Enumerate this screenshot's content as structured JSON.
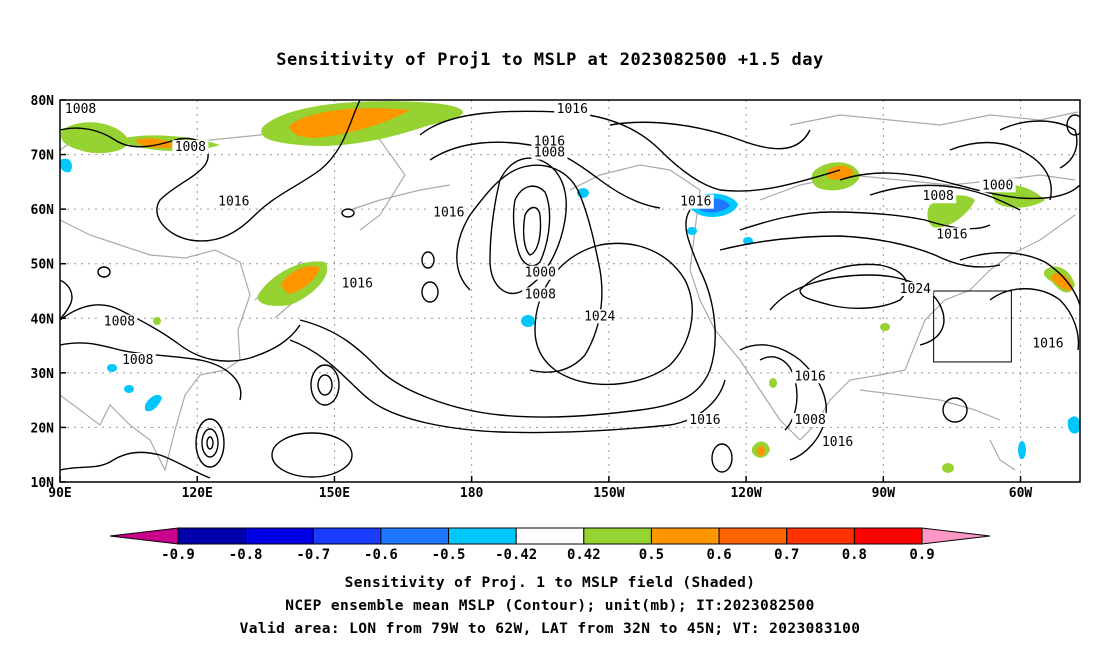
{
  "title": "Sensitivity of Proj1 to MSLP at 2023082500 +1.5 day",
  "x_ticks": [
    {
      "label": "90E",
      "lon": 90
    },
    {
      "label": "120E",
      "lon": 120
    },
    {
      "label": "150E",
      "lon": 150
    },
    {
      "label": "180",
      "lon": 180
    },
    {
      "label": "150W",
      "lon": 210
    },
    {
      "label": "120W",
      "lon": 240
    },
    {
      "label": "90W",
      "lon": 270
    },
    {
      "label": "60W",
      "lon": 300
    }
  ],
  "y_ticks": [
    {
      "label": "80N",
      "lat": 80
    },
    {
      "label": "70N",
      "lat": 70
    },
    {
      "label": "60N",
      "lat": 60
    },
    {
      "label": "50N",
      "lat": 50
    },
    {
      "label": "40N",
      "lat": 40
    },
    {
      "label": "30N",
      "lat": 30
    },
    {
      "label": "20N",
      "lat": 20
    },
    {
      "label": "10N",
      "lat": 10
    }
  ],
  "lon_range": [
    90,
    313
  ],
  "lat_range": [
    10,
    80
  ],
  "contour_labels": [
    {
      "text": "1008",
      "lon": 94.5,
      "lat": 78
    },
    {
      "text": "1008",
      "lon": 118.5,
      "lat": 71
    },
    {
      "text": "1016",
      "lon": 128,
      "lat": 61
    },
    {
      "text": "1016",
      "lon": 202,
      "lat": 78
    },
    {
      "text": "1016",
      "lon": 197,
      "lat": 72
    },
    {
      "text": "1008",
      "lon": 197,
      "lat": 70
    },
    {
      "text": "1016",
      "lon": 175,
      "lat": 59
    },
    {
      "text": "1016",
      "lon": 229,
      "lat": 61
    },
    {
      "text": "1016",
      "lon": 155,
      "lat": 46
    },
    {
      "text": "1000",
      "lon": 195,
      "lat": 48
    },
    {
      "text": "1008",
      "lon": 195,
      "lat": 44
    },
    {
      "text": "1024",
      "lon": 208,
      "lat": 40
    },
    {
      "text": "1008",
      "lon": 103,
      "lat": 39
    },
    {
      "text": "1008",
      "lon": 107,
      "lat": 32
    },
    {
      "text": "1016",
      "lon": 231,
      "lat": 21
    },
    {
      "text": "1016",
      "lon": 254,
      "lat": 29
    },
    {
      "text": "1008",
      "lon": 254,
      "lat": 21
    },
    {
      "text": "1016",
      "lon": 260,
      "lat": 17
    },
    {
      "text": "1024",
      "lon": 277,
      "lat": 45
    },
    {
      "text": "1016",
      "lon": 285,
      "lat": 55
    },
    {
      "text": "1008",
      "lon": 282,
      "lat": 62
    },
    {
      "text": "1000",
      "lon": 295,
      "lat": 64
    },
    {
      "text": "1016",
      "lon": 306,
      "lat": 35
    }
  ],
  "valid_box": {
    "lon": [
      281,
      298
    ],
    "lat": [
      32,
      45
    ]
  },
  "colorbar": {
    "labels": [
      "-0.9",
      "-0.8",
      "-0.7",
      "-0.6",
      "-0.5",
      "-0.42",
      "0.42",
      "0.5",
      "0.6",
      "0.7",
      "0.8",
      "0.9"
    ],
    "colors": [
      "#0000aa",
      "#0000e6",
      "#1a3cff",
      "#1e78ff",
      "#00c8ff",
      "#ffffff",
      "#96d232",
      "#ff9600",
      "#ff6400",
      "#ff3200",
      "#ff0000"
    ],
    "low_end_color": "#c8008c",
    "high_end_color": "#ff96c8"
  },
  "caption": {
    "line1": "Sensitivity of Proj. 1 to MSLP field (Shaded)",
    "line2": "NCEP ensemble mean MSLP (Contour); unit(mb); IT:2023082500",
    "line3": "Valid area: LON from 79W to 62W, LAT from 32N to 45N; VT: 2023083100"
  }
}
